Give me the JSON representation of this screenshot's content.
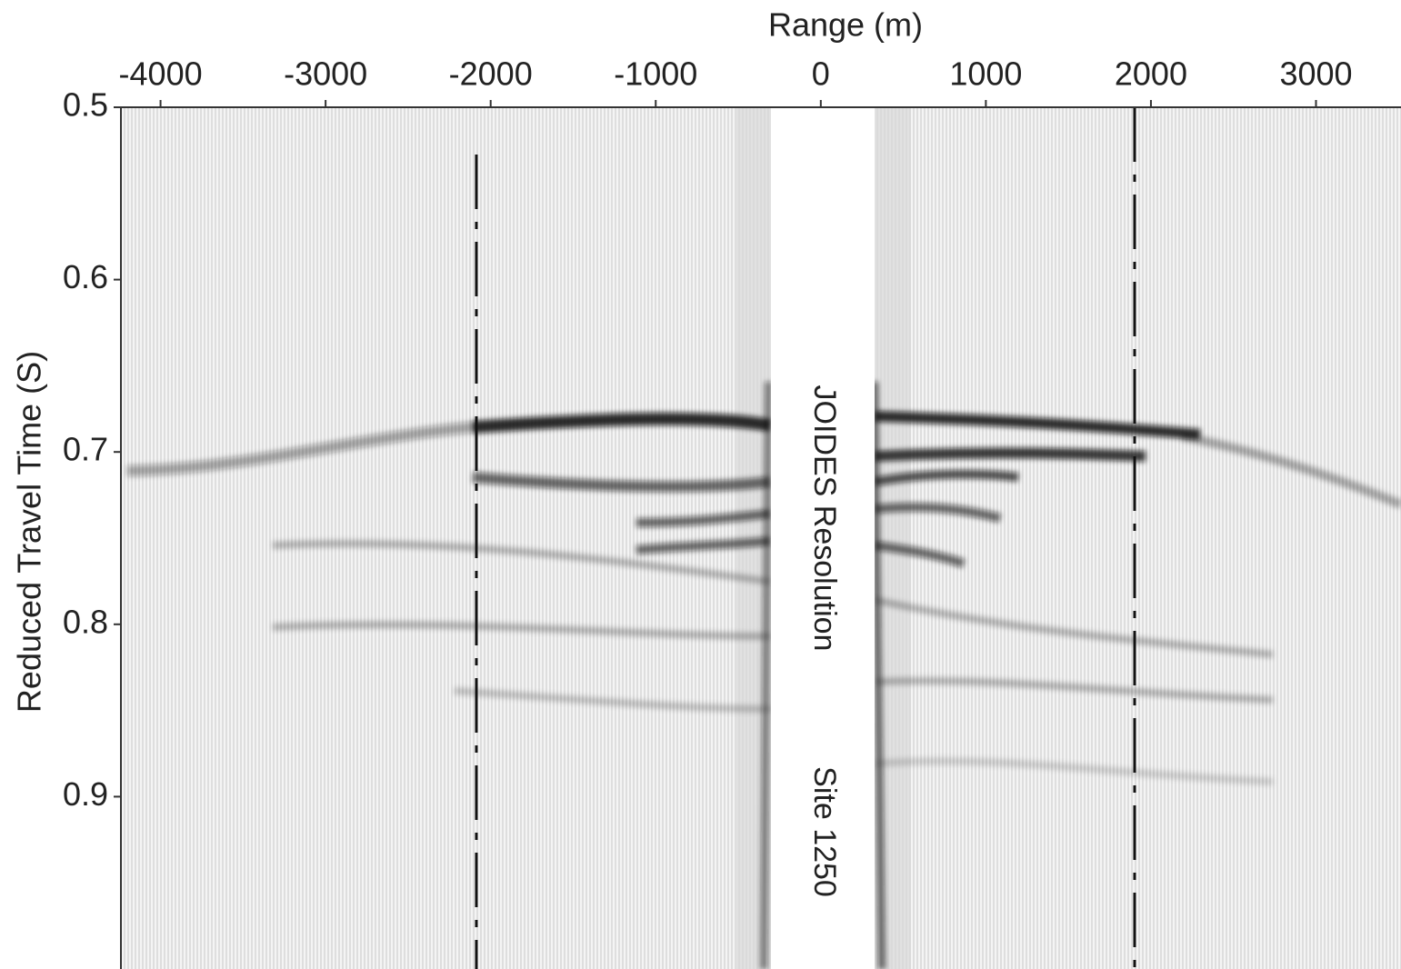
{
  "chart_data": {
    "type": "seismic",
    "x_label": "Range (m)",
    "y_label": "Reduced Travel Time (S)",
    "annotations": [
      "JOIDES Resolution",
      "Site 1250"
    ],
    "xlim": [
      -4240,
      3515
    ],
    "xticks": [
      -4000,
      -3000,
      -2000,
      -1000,
      0,
      1000,
      2000,
      3000
    ],
    "ylim": [
      0.5,
      1.0
    ],
    "yticks": [
      0.5,
      0.6,
      0.7,
      0.8,
      0.9
    ],
    "xaxis_position": "top"
  }
}
